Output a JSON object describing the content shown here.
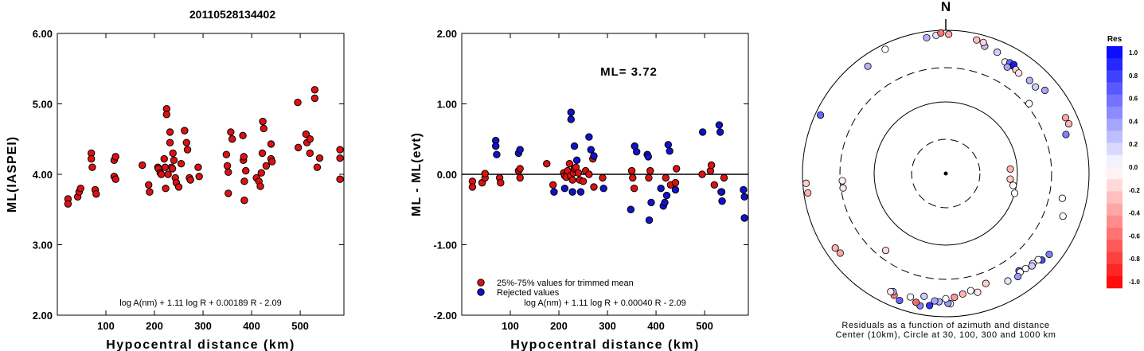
{
  "title": "20110528134402",
  "chart_data": [
    {
      "type": "scatter",
      "xlabel": "Hypocentral distance (km)",
      "ylabel": "ML(IASPEI)",
      "xlim": [
        0,
        590
      ],
      "ylim": [
        2.0,
        6.0
      ],
      "xticks": [
        "100",
        "200",
        "300",
        "400",
        "500"
      ],
      "yticks": [
        "2.00",
        "3.00",
        "4.00",
        "5.00",
        "6.00"
      ],
      "formula": "log A(nm) + 1.11 log R + 0.00189 R - 2.09",
      "points_color": "#dd1111",
      "points": [
        [
          22,
          3.65
        ],
        [
          22,
          3.58
        ],
        [
          42,
          3.68
        ],
        [
          45,
          3.75
        ],
        [
          48,
          3.8
        ],
        [
          70,
          4.3
        ],
        [
          70,
          4.22
        ],
        [
          72,
          4.1
        ],
        [
          78,
          3.78
        ],
        [
          80,
          3.72
        ],
        [
          117,
          4.2
        ],
        [
          117,
          3.97
        ],
        [
          120,
          4.25
        ],
        [
          120,
          3.93
        ],
        [
          175,
          4.13
        ],
        [
          188,
          3.85
        ],
        [
          190,
          3.75
        ],
        [
          207,
          4.1
        ],
        [
          208,
          4.08
        ],
        [
          212,
          4.02
        ],
        [
          214,
          4.0
        ],
        [
          220,
          4.22
        ],
        [
          222,
          4.1
        ],
        [
          223,
          3.8
        ],
        [
          225,
          4.93
        ],
        [
          225,
          4.85
        ],
        [
          228,
          4.0
        ],
        [
          232,
          4.6
        ],
        [
          232,
          4.45
        ],
        [
          235,
          4.1
        ],
        [
          237,
          4.08
        ],
        [
          238,
          4.3
        ],
        [
          240,
          4.2
        ],
        [
          243,
          3.95
        ],
        [
          245,
          3.88
        ],
        [
          250,
          3.82
        ],
        [
          255,
          4.15
        ],
        [
          262,
          4.62
        ],
        [
          266,
          4.45
        ],
        [
          268,
          4.35
        ],
        [
          272,
          3.95
        ],
        [
          274,
          3.92
        ],
        [
          290,
          4.1
        ],
        [
          292,
          3.97
        ],
        [
          348,
          4.28
        ],
        [
          350,
          4.12
        ],
        [
          352,
          4.03
        ],
        [
          352,
          3.73
        ],
        [
          357,
          4.6
        ],
        [
          360,
          4.5
        ],
        [
          382,
          4.55
        ],
        [
          383,
          4.2
        ],
        [
          384,
          4.25
        ],
        [
          385,
          3.9
        ],
        [
          385,
          3.63
        ],
        [
          388,
          4.05
        ],
        [
          410,
          3.95
        ],
        [
          415,
          3.9
        ],
        [
          418,
          3.83
        ],
        [
          420,
          4.02
        ],
        [
          422,
          4.3
        ],
        [
          423,
          4.75
        ],
        [
          425,
          4.65
        ],
        [
          430,
          4.12
        ],
        [
          440,
          4.43
        ],
        [
          440,
          4.22
        ],
        [
          442,
          4.18
        ],
        [
          495,
          5.02
        ],
        [
          496,
          4.38
        ],
        [
          512,
          4.57
        ],
        [
          514,
          4.45
        ],
        [
          520,
          4.5
        ],
        [
          520,
          4.3
        ],
        [
          530,
          5.2
        ],
        [
          530,
          5.08
        ],
        [
          535,
          4.1
        ],
        [
          540,
          4.23
        ],
        [
          582,
          4.35
        ],
        [
          582,
          4.23
        ],
        [
          582,
          3.93
        ]
      ]
    },
    {
      "type": "scatter",
      "xlabel": "Hypocentral distance (km)",
      "ylabel": "ML - ML(evt)",
      "xlim": [
        0,
        590
      ],
      "ylim": [
        -2.0,
        2.0
      ],
      "xticks": [
        "100",
        "200",
        "300",
        "400",
        "500"
      ],
      "yticks": [
        "-2.00",
        "-1.00",
        "0.00",
        "1.00",
        "2.00"
      ],
      "annotation": "ML= 3.72",
      "formula": "log A(nm) + 1.11 log R + 0.00040 R - 2.09",
      "legend": [
        {
          "label": "25%-75% values for trimmed mean",
          "color": "#dd1111"
        },
        {
          "label": "Rejected values",
          "color": "#1111cc"
        }
      ],
      "series": [
        {
          "name": "25%-75% values for trimmed mean",
          "color": "#dd1111",
          "points": [
            [
              22,
              -0.1
            ],
            [
              22,
              -0.18
            ],
            [
              42,
              -0.12
            ],
            [
              48,
              -0.05
            ],
            [
              48,
              0.01
            ],
            [
              78,
              -0.05
            ],
            [
              80,
              -0.12
            ],
            [
              117,
              0.05
            ],
            [
              120,
              -0.05
            ],
            [
              120,
              0.08
            ],
            [
              175,
              0.15
            ],
            [
              188,
              -0.15
            ],
            [
              210,
              0.02
            ],
            [
              212,
              -0.02
            ],
            [
              215,
              -0.04
            ],
            [
              218,
              0.05
            ],
            [
              222,
              0.15
            ],
            [
              224,
              -0.02
            ],
            [
              228,
              -0.08
            ],
            [
              230,
              0.02
            ],
            [
              232,
              0.08
            ],
            [
              235,
              0.1
            ],
            [
              240,
              0.02
            ],
            [
              243,
              -0.08
            ],
            [
              250,
              -0.1
            ],
            [
              255,
              0.05
            ],
            [
              262,
              0.0
            ],
            [
              270,
              0.22
            ],
            [
              272,
              -0.18
            ],
            [
              290,
              -0.05
            ],
            [
              350,
              0.05
            ],
            [
              352,
              -0.05
            ],
            [
              355,
              -0.2
            ],
            [
              385,
              -0.05
            ],
            [
              388,
              0.05
            ],
            [
              420,
              -0.05
            ],
            [
              430,
              -0.15
            ],
            [
              440,
              -0.12
            ],
            [
              442,
              0.08
            ],
            [
              495,
              0.0
            ],
            [
              512,
              0.05
            ],
            [
              514,
              0.13
            ],
            [
              520,
              -0.15
            ],
            [
              535,
              -0.25
            ],
            [
              540,
              -0.05
            ]
          ]
        },
        {
          "name": "Rejected values",
          "color": "#1111cc",
          "points": [
            [
              70,
              0.48
            ],
            [
              70,
              0.4
            ],
            [
              72,
              0.28
            ],
            [
              117,
              0.3
            ],
            [
              120,
              0.35
            ],
            [
              190,
              -0.25
            ],
            [
              212,
              -0.2
            ],
            [
              225,
              0.88
            ],
            [
              225,
              0.78
            ],
            [
              228,
              -0.25
            ],
            [
              232,
              0.4
            ],
            [
              237,
              0.2
            ],
            [
              245,
              -0.25
            ],
            [
              262,
              0.53
            ],
            [
              266,
              0.35
            ],
            [
              272,
              0.26
            ],
            [
              292,
              -0.2
            ],
            [
              348,
              -0.5
            ],
            [
              356,
              0.4
            ],
            [
              360,
              0.32
            ],
            [
              382,
              0.28
            ],
            [
              384,
              0.25
            ],
            [
              386,
              -0.65
            ],
            [
              390,
              -0.4
            ],
            [
              410,
              -0.2
            ],
            [
              415,
              -0.45
            ],
            [
              418,
              -0.4
            ],
            [
              422,
              -0.3
            ],
            [
              425,
              0.42
            ],
            [
              428,
              0.33
            ],
            [
              440,
              -0.22
            ],
            [
              496,
              0.6
            ],
            [
              530,
              0.7
            ],
            [
              532,
              0.6
            ],
            [
              534,
              -0.25
            ],
            [
              536,
              -0.38
            ],
            [
              580,
              -0.22
            ],
            [
              582,
              -0.32
            ],
            [
              582,
              -0.62
            ]
          ]
        }
      ]
    },
    {
      "type": "scatter",
      "subtype": "polar",
      "north_label": "N",
      "caption_lines": [
        "Residuals as a function of azimuth and distance",
        "Center (10km), Circle at 30, 100, 300 and 1000 km"
      ],
      "colorbar_title": "Res",
      "colorbar_ticks": [
        "1.0",
        "0.8",
        "0.6",
        "0.4",
        "0.2",
        "0.0",
        "-0.2",
        "-0.4",
        "-0.6",
        "-0.8",
        "-1.0"
      ],
      "colorbar_range": [
        -1.0,
        1.0
      ],
      "points": [
        [
          1.2,
          880,
          -0.35
        ],
        [
          17,
          720,
          0.25
        ],
        [
          23,
          690,
          0.18
        ],
        [
          13,
          820,
          -0.25
        ],
        [
          16,
          800,
          -0.18
        ],
        [
          28,
          580,
          -0.05
        ],
        [
          30,
          610,
          0.6
        ],
        [
          32,
          590,
          0.8
        ],
        [
          32,
          620,
          0.9
        ],
        [
          34,
          560,
          -0.2
        ],
        [
          36,
          540,
          -0.1
        ],
        [
          30,
          520,
          0.35
        ],
        [
          42,
          560,
          0.3
        ],
        [
          46,
          550,
          0.2
        ],
        [
          50,
          640,
          0.35
        ],
        [
          50,
          330,
          0.0
        ],
        [
          65,
          700,
          -0.35
        ],
        [
          68,
          710,
          -0.3
        ],
        [
          72,
          580,
          0.5
        ],
        [
          86,
          80,
          -0.3
        ],
        [
          95,
          80,
          -0.2
        ],
        [
          100,
          90,
          0.0
        ],
        [
          106,
          100,
          0.0
        ],
        [
          102,
          460,
          0.0
        ],
        [
          110,
          550,
          0.0
        ],
        [
          128,
          680,
          0.5
        ],
        [
          132,
          640,
          0.7
        ],
        [
          133,
          580,
          0.0
        ],
        [
          136,
          560,
          0.1
        ],
        [
          137,
          580,
          0.2
        ],
        [
          140,
          540,
          0.0
        ],
        [
          143,
          500,
          0.6
        ],
        [
          143,
          530,
          0.0
        ],
        [
          145,
          570,
          0.4
        ],
        [
          150,
          540,
          0.1
        ],
        [
          160,
          430,
          -0.2
        ],
        [
          165,
          520,
          -0.1
        ],
        [
          168,
          470,
          0.0
        ],
        [
          172,
          500,
          -0.3
        ],
        [
          176,
          540,
          -0.4
        ],
        [
          178,
          660,
          0.0
        ],
        [
          179,
          650,
          0.4
        ],
        [
          180,
          560,
          0.0
        ],
        [
          183,
          620,
          0.3
        ],
        [
          185,
          610,
          0.35
        ],
        [
          187,
          720,
          0.8
        ],
        [
          190,
          550,
          0.2
        ],
        [
          191,
          760,
          0.5
        ],
        [
          193,
          700,
          -0.6
        ],
        [
          196,
          620,
          0.0
        ],
        [
          200,
          770,
          0.6
        ],
        [
          203,
          700,
          -0.5
        ],
        [
          204,
          640,
          0.3
        ],
        [
          205,
          660,
          -0.1
        ],
        [
          218,
          230,
          -0.15
        ],
        [
          233,
          700,
          -0.35
        ],
        [
          236,
          725,
          -0.3
        ],
        [
          262,
          280,
          -0.1
        ],
        [
          262,
          880,
          -0.3
        ],
        [
          266,
          280,
          -0.05
        ],
        [
          266,
          900,
          -0.2
        ],
        [
          295,
          850,
          0.6
        ],
        [
          324,
          710,
          0.3
        ],
        [
          334,
          850,
          0.0
        ],
        [
          352,
          820,
          0.3
        ],
        [
          356,
          860,
          0.1
        ],
        [
          358,
          920,
          -0.55
        ]
      ]
    }
  ]
}
